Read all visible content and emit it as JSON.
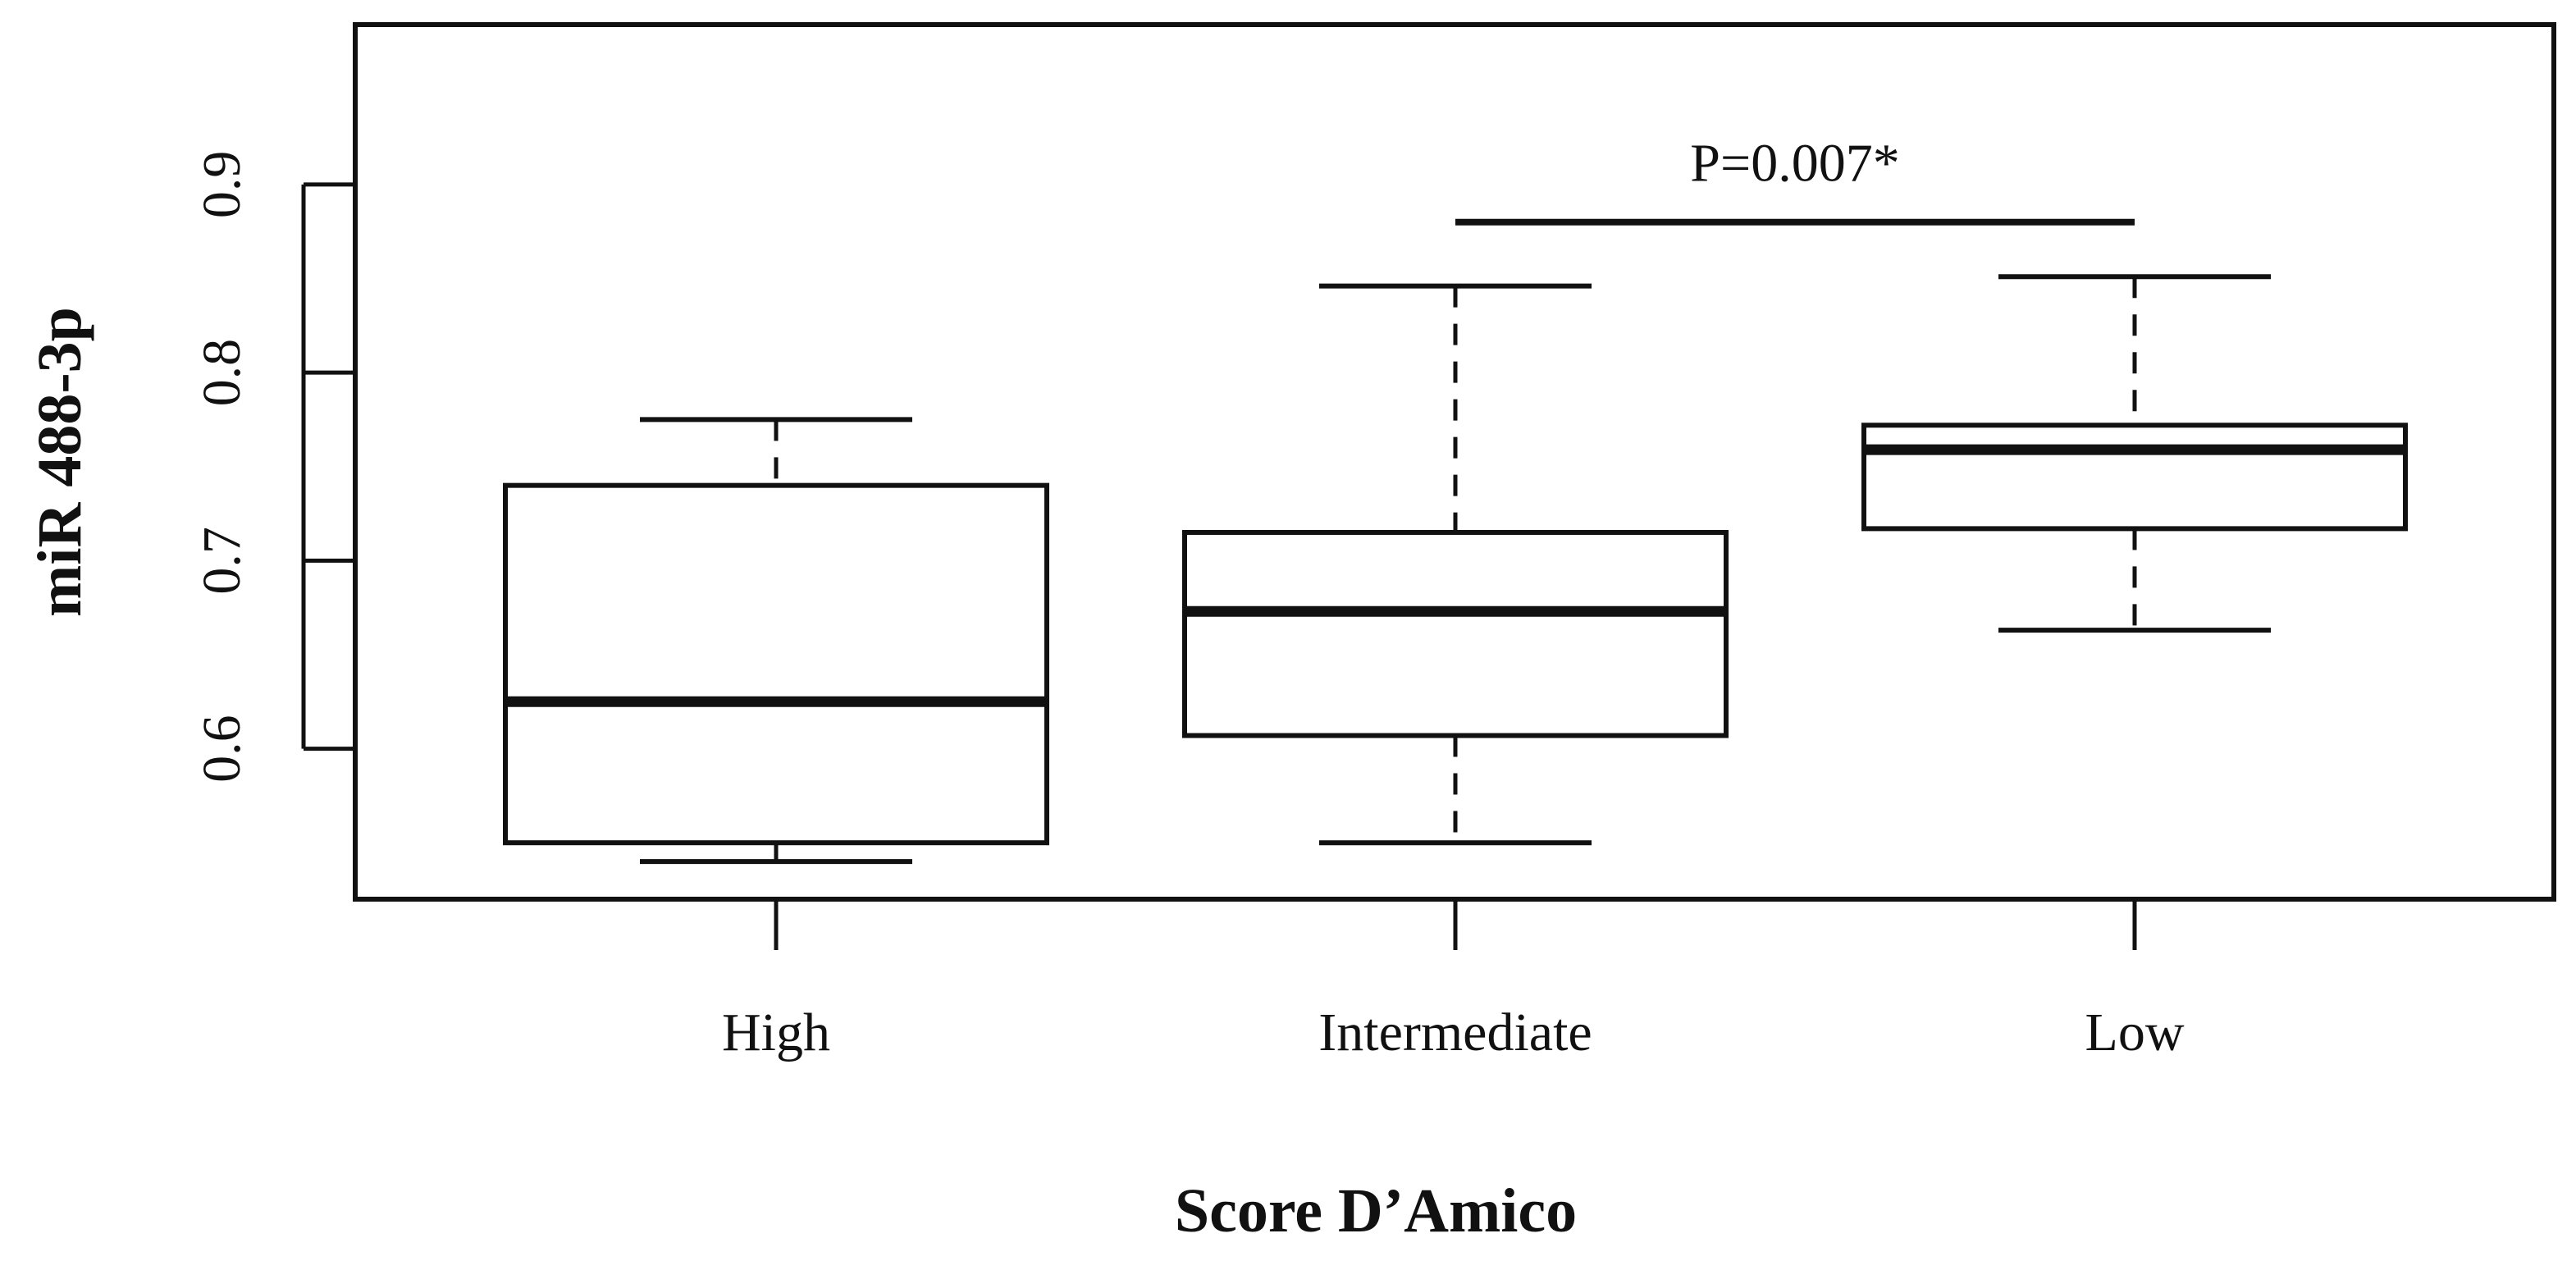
{
  "chart_data": {
    "type": "boxplot",
    "xlabel": "Score D’Amico",
    "ylabel": "miR 488-3p",
    "ylim": [
      0.52,
      0.985
    ],
    "yticks": [
      "0.6",
      "0.7",
      "0.8",
      "0.9"
    ],
    "categories": [
      "High",
      "Intermediate",
      "Low"
    ],
    "boxes": [
      {
        "category": "High",
        "whisker_low": 0.54,
        "q1": 0.55,
        "median": 0.625,
        "q3": 0.74,
        "whisker_high": 0.775
      },
      {
        "category": "Intermediate",
        "whisker_low": 0.55,
        "q1": 0.607,
        "median": 0.673,
        "q3": 0.715,
        "whisker_high": 0.846
      },
      {
        "category": "Low",
        "whisker_low": 0.663,
        "q1": 0.717,
        "median": 0.759,
        "q3": 0.772,
        "whisker_high": 0.851
      }
    ],
    "annotation": {
      "text": "P=0.007*",
      "from": "Intermediate",
      "to": "Low",
      "y": 0.88
    },
    "grid": false,
    "legend": "none"
  },
  "colors": {
    "ink": "#111111",
    "background": "#ffffff"
  }
}
